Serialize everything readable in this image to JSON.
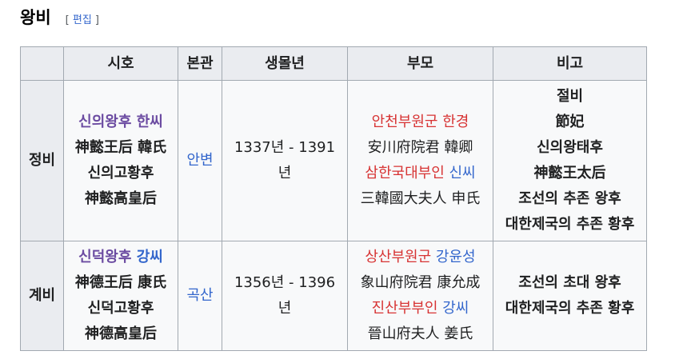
{
  "section": {
    "title": "왕비",
    "edit_open": "[",
    "edit_label": "편집",
    "edit_close": "]"
  },
  "table": {
    "headers": [
      "시호",
      "본관",
      "생몰년",
      "부모",
      "비고"
    ],
    "rows": [
      {
        "rank": "정비",
        "posthumous": {
          "name_link": "신의왕후",
          "clan_link": "한씨",
          "hanja": "神懿王后 韓氏",
          "later_title": "신의고황후",
          "later_title_hanja": "神懿高皇后"
        },
        "clan_seat": "안변",
        "lifespan": "1337년 - 1391년",
        "parents": {
          "father_link": "안천부원군 한경",
          "father_hanja": "安川府院君 韓卿",
          "mother_title_link": "삼한국대부인",
          "mother_clan_link": "신씨",
          "mother_hanja": "三韓國大夫人 申氏"
        },
        "notes": [
          "절비",
          "節妃",
          "신의왕태후",
          "神懿王太后",
          "조선의 추존 왕후",
          "대한제국의 추존 황후"
        ]
      },
      {
        "rank": "계비",
        "posthumous": {
          "name_link": "신덕왕후",
          "clan_link": "강씨",
          "hanja": "神德王后 康氏",
          "later_title": "신덕고황후",
          "later_title_hanja": "神德高皇后"
        },
        "clan_seat": "곡산",
        "lifespan": "1356년 - 1396년",
        "parents": {
          "father_title_link": "상산부원군",
          "father_name_link": "강윤성",
          "father_hanja": "象山府院君 康允成",
          "mother_title_link": "진산부부인",
          "mother_clan_link": "강씨",
          "mother_hanja": "晉山府夫人 姜氏"
        },
        "notes": [
          "조선의 초대 왕후",
          "대한제국의 추존 황후"
        ]
      }
    ]
  }
}
